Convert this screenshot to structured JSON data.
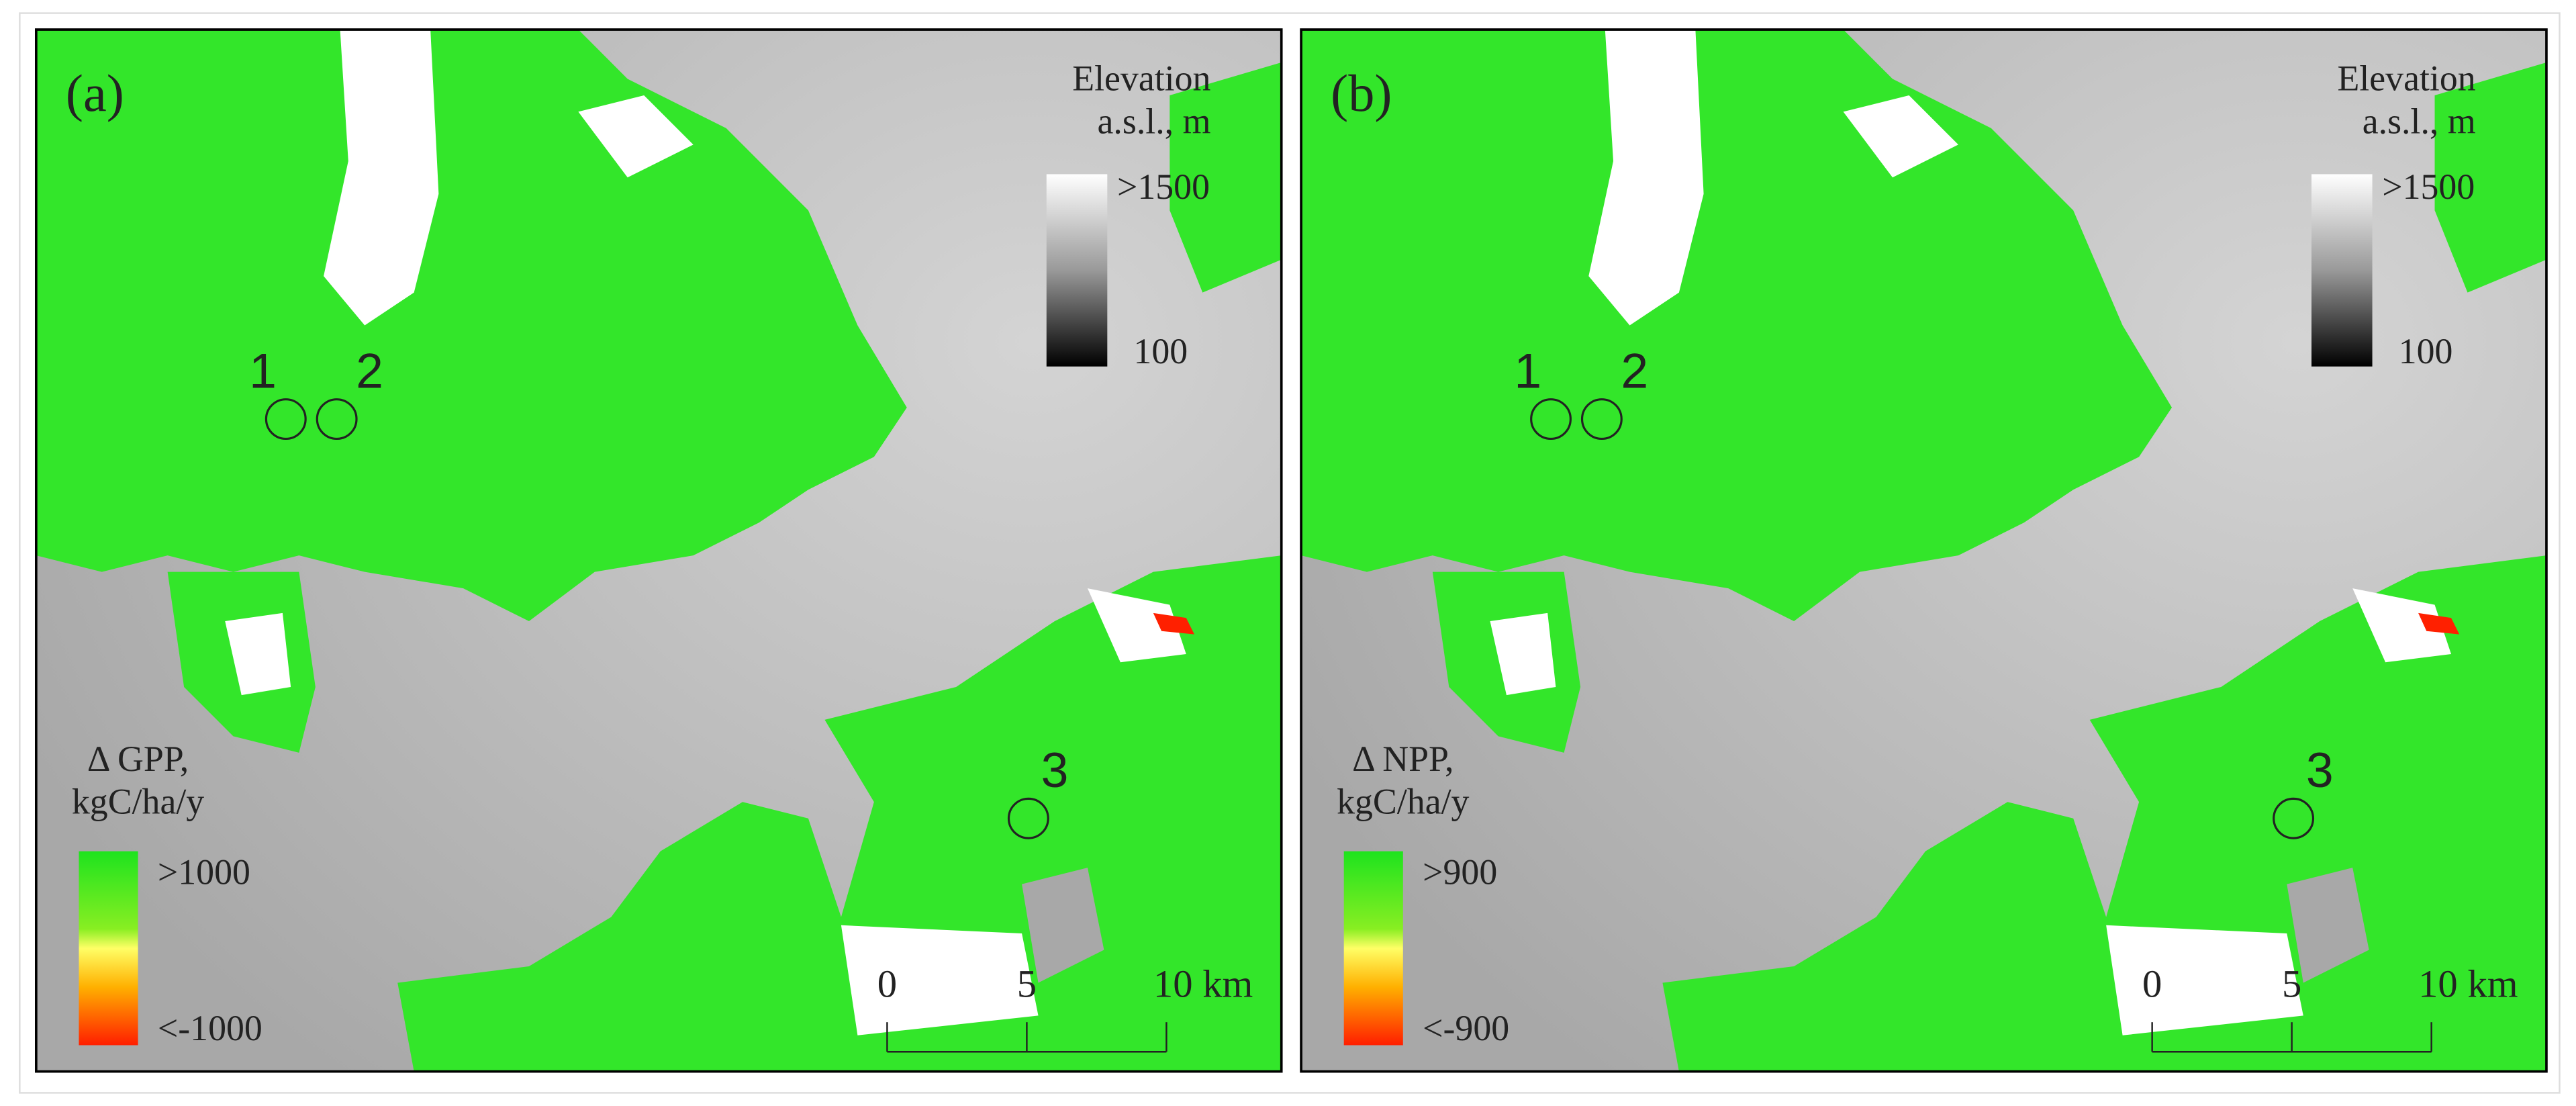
{
  "panels": [
    {
      "label": "(a)",
      "elevation_title": [
        "Elevation",
        "a.s.l., m"
      ],
      "elevation_max": ">1500",
      "elevation_min": "100",
      "legend_title": [
        "Δ GPP,",
        "kgC/ha/y"
      ],
      "legend_max": ">1000",
      "legend_min": "<-1000",
      "sites": [
        "1",
        "2",
        "3"
      ],
      "scale_ticks": [
        0,
        5,
        {
          "value": 10,
          "label": "10 km"
        }
      ]
    },
    {
      "label": "(b)",
      "elevation_title": [
        "Elevation",
        "a.s.l., m"
      ],
      "elevation_max": ">1500",
      "elevation_min": "100",
      "legend_title": [
        "Δ NPP,",
        "kgC/ha/y"
      ],
      "legend_max": ">900",
      "legend_min": "<-900",
      "sites": [
        "1",
        "2",
        "3"
      ],
      "scale_ticks": [
        0,
        5,
        {
          "value": 10,
          "label": "10 km"
        }
      ]
    }
  ]
}
